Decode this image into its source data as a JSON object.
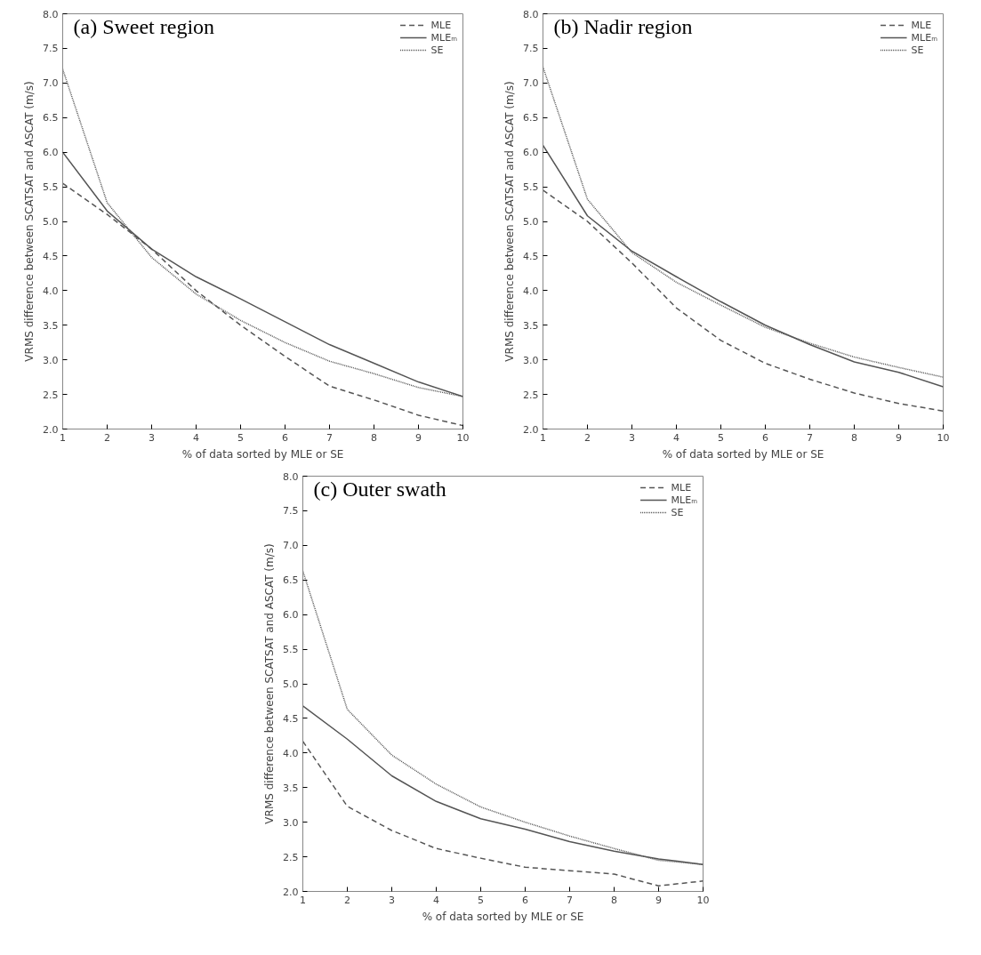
{
  "chart_data": [
    {
      "type": "line",
      "title": "(a) Sweet region",
      "xlabel": "% of data sorted by MLE or SE",
      "ylabel": "VRMS difference between SCATSAT and ASCAT (m/s)",
      "x": [
        1,
        2,
        3,
        4,
        5,
        6,
        7,
        8,
        9,
        10
      ],
      "xlim": [
        1,
        10
      ],
      "xticks": [
        1,
        2,
        3,
        4,
        5,
        6,
        7,
        8,
        9,
        10
      ],
      "ylim": [
        2,
        8
      ],
      "yticks": [
        {
          "value": 2,
          "label": "2.0"
        },
        2.5,
        {
          "value": 3,
          "label": "3.0"
        },
        3.5,
        {
          "value": 4,
          "label": "4.0"
        },
        4.5,
        {
          "value": 5,
          "label": "5.0"
        },
        5.5,
        {
          "value": 6,
          "label": "6.0"
        },
        6.5,
        {
          "value": 7,
          "label": "7.0"
        },
        7.5,
        {
          "value": 8,
          "label": "8.0"
        }
      ],
      "grid": false,
      "legend": "top right",
      "series": [
        {
          "name": "MLE",
          "color": "#555555",
          "line_style": "dashed",
          "values": [
            5.55,
            5.1,
            4.6,
            4.0,
            3.5,
            3.05,
            2.62,
            2.42,
            2.2,
            2.05
          ]
        },
        {
          "name": "MLEₘ",
          "color": "#555555",
          "line_style": "solid",
          "values": [
            6.0,
            5.15,
            4.6,
            4.2,
            3.88,
            3.55,
            3.22,
            2.95,
            2.68,
            2.47
          ]
        },
        {
          "name": "SE",
          "color": "#555555",
          "line_style": "dotted",
          "values": [
            7.2,
            5.27,
            4.48,
            3.95,
            3.57,
            3.25,
            2.98,
            2.8,
            2.6,
            2.47
          ]
        }
      ]
    },
    {
      "type": "line",
      "title": "(b) Nadir region",
      "xlabel": "% of data sorted by MLE or SE",
      "ylabel": "VRMS difference between SCATSAT and ASCAT (m/s)",
      "x": [
        1,
        2,
        3,
        4,
        5,
        6,
        7,
        8,
        9,
        10
      ],
      "xlim": [
        1,
        10
      ],
      "xticks": [
        1,
        2,
        3,
        4,
        5,
        6,
        7,
        8,
        9,
        10
      ],
      "ylim": [
        2,
        8
      ],
      "yticks": [
        {
          "value": 2,
          "label": "2.0"
        },
        2.5,
        {
          "value": 3,
          "label": "3.0"
        },
        3.5,
        {
          "value": 4,
          "label": "4.0"
        },
        4.5,
        {
          "value": 5,
          "label": "5.0"
        },
        5.5,
        {
          "value": 6,
          "label": "6.0"
        },
        6.5,
        {
          "value": 7,
          "label": "7.0"
        },
        7.5,
        {
          "value": 8,
          "label": "8.0"
        }
      ],
      "grid": false,
      "legend": "top right",
      "series": [
        {
          "name": "MLE",
          "color": "#555555",
          "line_style": "dashed",
          "values": [
            5.45,
            5.0,
            4.4,
            3.75,
            3.28,
            2.95,
            2.72,
            2.52,
            2.37,
            2.26
          ]
        },
        {
          "name": "MLEₘ",
          "color": "#555555",
          "line_style": "solid",
          "values": [
            6.1,
            5.08,
            4.57,
            4.2,
            3.84,
            3.5,
            3.22,
            2.97,
            2.82,
            2.61
          ]
        },
        {
          "name": "SE",
          "color": "#555555",
          "line_style": "dotted",
          "values": [
            7.23,
            5.32,
            4.55,
            4.12,
            3.79,
            3.47,
            3.24,
            3.04,
            2.89,
            2.75
          ]
        }
      ]
    },
    {
      "type": "line",
      "title": "(c) Outer swath",
      "xlabel": "% of data sorted by MLE or SE",
      "ylabel": "VRMS difference between SCATSAT and ASCAT (m/s)",
      "x": [
        1,
        2,
        3,
        4,
        5,
        6,
        7,
        8,
        9,
        10
      ],
      "xlim": [
        1,
        10
      ],
      "xticks": [
        1,
        2,
        3,
        4,
        5,
        6,
        7,
        8,
        9,
        10
      ],
      "ylim": [
        2,
        8
      ],
      "yticks": [
        {
          "value": 2,
          "label": "2.0"
        },
        2.5,
        {
          "value": 3,
          "label": "3.0"
        },
        3.5,
        {
          "value": 4,
          "label": "4.0"
        },
        4.5,
        {
          "value": 5,
          "label": "5.0"
        },
        5.5,
        {
          "value": 6,
          "label": "6.0"
        },
        6.5,
        {
          "value": 7,
          "label": "7.0"
        },
        7.5,
        {
          "value": 8,
          "label": "8.0"
        }
      ],
      "grid": false,
      "legend": "top right",
      "series": [
        {
          "name": "MLE",
          "color": "#555555",
          "line_style": "dashed",
          "values": [
            4.17,
            3.23,
            2.88,
            2.62,
            2.48,
            2.35,
            2.3,
            2.25,
            2.08,
            2.15
          ]
        },
        {
          "name": "MLEₘ",
          "color": "#555555",
          "line_style": "solid",
          "values": [
            4.68,
            4.2,
            3.67,
            3.3,
            3.05,
            2.9,
            2.72,
            2.58,
            2.47,
            2.39
          ]
        },
        {
          "name": "SE",
          "color": "#555555",
          "line_style": "dotted",
          "values": [
            6.63,
            4.63,
            3.97,
            3.55,
            3.22,
            3.0,
            2.8,
            2.62,
            2.45,
            2.39
          ]
        }
      ]
    }
  ]
}
